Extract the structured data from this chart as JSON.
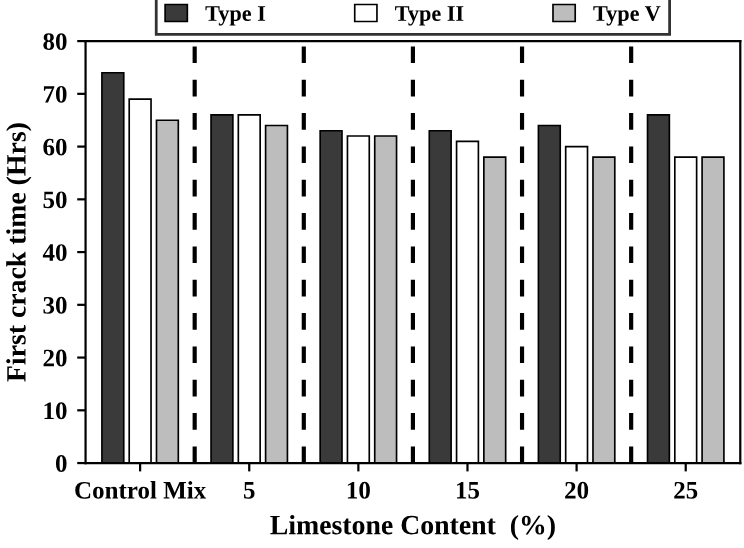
{
  "chart_data": {
    "type": "bar",
    "xlabel": "Limestone Content  (%)",
    "ylabel": "First crack time (Hrs)",
    "categories": [
      "Control Mix",
      "5",
      "10",
      "15",
      "20",
      "25"
    ],
    "series": [
      {
        "name": "Type I",
        "color": "#3a3a3a",
        "values": [
          74,
          66,
          63,
          63,
          64,
          66
        ]
      },
      {
        "name": "Type II",
        "color": "#ffffff",
        "values": [
          69,
          66,
          62,
          61,
          60,
          58
        ]
      },
      {
        "name": "Type V",
        "color": "#bdbdbd",
        "values": [
          65,
          64,
          62,
          58,
          58,
          58
        ]
      }
    ],
    "ylim": [
      0,
      80
    ],
    "yticks": [
      0,
      10,
      20,
      30,
      40,
      50,
      60,
      70,
      80
    ],
    "grid": false,
    "legend": "top"
  }
}
